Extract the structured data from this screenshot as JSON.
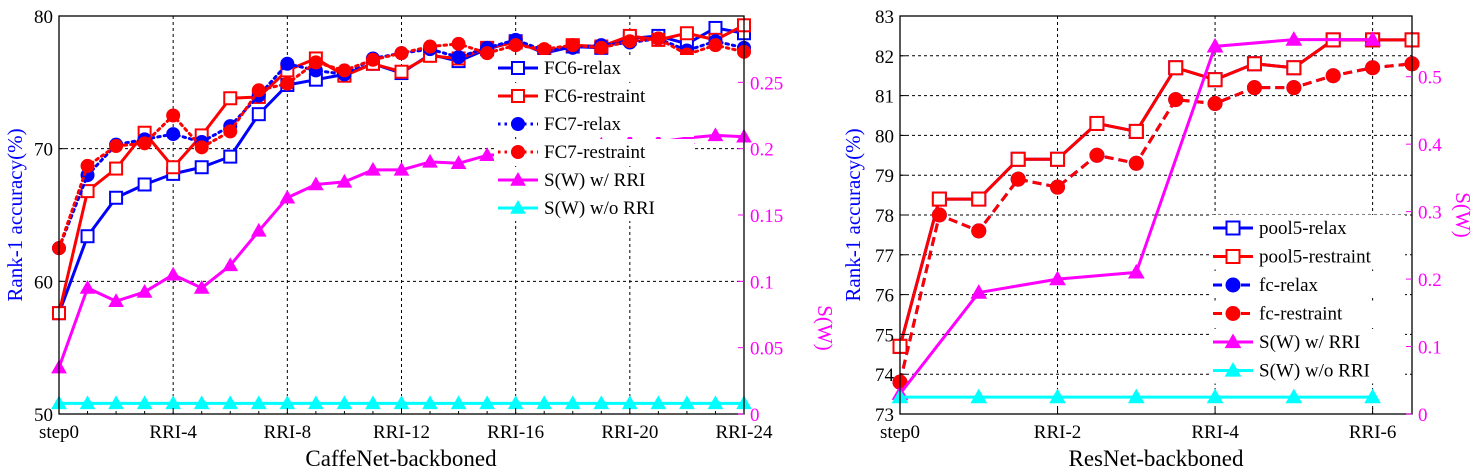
{
  "chart_data": [
    {
      "type": "line",
      "xlabel": "CaffeNet-backboned",
      "ylabel": "Rank-1 accuracy(%)",
      "y2label": "S(W)",
      "x_tick_labels": [
        "step0",
        "RRI-4",
        "RRI-8",
        "RRI-12",
        "RRI-16",
        "RRI-20",
        "RRI-24"
      ],
      "x_ticks": [
        0,
        4,
        8,
        12,
        16,
        20,
        24
      ],
      "xlim": [
        0,
        24
      ],
      "ylim": [
        50,
        80
      ],
      "y_ticks": [
        50,
        60,
        70,
        80
      ],
      "y2lim": [
        0,
        0.3
      ],
      "y2_ticks": [
        0,
        0.05,
        0.1,
        0.15,
        0.2,
        0.25
      ],
      "y2_tick_labels": [
        "0",
        "0.05",
        "0.1",
        "0.15",
        "0.2",
        "0.25"
      ],
      "grid": true,
      "legend_position": "right",
      "series": [
        {
          "name": "FC6-relax",
          "axis": "left",
          "color": "#0000ff",
          "dash": "solid",
          "marker": "square-open",
          "x": [
            0,
            1,
            2,
            3,
            4,
            5,
            6,
            7,
            8,
            9,
            10,
            11,
            12,
            13,
            14,
            15,
            16,
            17,
            18,
            19,
            20,
            21,
            22,
            23,
            24
          ],
          "values": [
            57.6,
            63.4,
            66.3,
            67.3,
            68.1,
            68.6,
            69.4,
            72.6,
            74.8,
            75.2,
            75.6,
            76.4,
            75.7,
            77.1,
            76.6,
            77.5,
            78.1,
            77.2,
            77.7,
            77.6,
            78.3,
            78.5,
            77.9,
            79.1,
            78.7
          ]
        },
        {
          "name": "FC6-restraint",
          "axis": "left",
          "color": "#ff0000",
          "dash": "solid",
          "marker": "square-open",
          "x": [
            0,
            1,
            2,
            3,
            4,
            5,
            6,
            7,
            8,
            9,
            10,
            11,
            12,
            13,
            14,
            15,
            16,
            17,
            18,
            19,
            20,
            21,
            22,
            23,
            24
          ],
          "values": [
            57.6,
            66.8,
            68.5,
            71.2,
            68.6,
            71.0,
            73.8,
            73.9,
            75.9,
            76.8,
            75.5,
            76.4,
            75.8,
            77.0,
            76.8,
            77.6,
            78.0,
            77.3,
            77.8,
            77.7,
            78.5,
            78.2,
            78.7,
            78.2,
            79.3
          ]
        },
        {
          "name": "FC7-relax",
          "axis": "left",
          "color": "#0000ff",
          "dash": "dot",
          "marker": "circle",
          "x": [
            0,
            1,
            2,
            3,
            4,
            5,
            6,
            7,
            8,
            9,
            10,
            11,
            12,
            13,
            14,
            15,
            16,
            17,
            18,
            19,
            20,
            21,
            22,
            23,
            24
          ],
          "values": [
            62.5,
            68.0,
            70.3,
            70.7,
            71.1,
            70.5,
            71.7,
            74.0,
            76.4,
            75.9,
            75.6,
            76.8,
            77.2,
            77.5,
            76.9,
            77.6,
            78.2,
            77.4,
            77.6,
            77.8,
            78.0,
            78.3,
            77.4,
            78.1,
            77.6
          ]
        },
        {
          "name": "FC7-restraint",
          "axis": "left",
          "color": "#ff0000",
          "dash": "dot",
          "marker": "circle",
          "x": [
            0,
            1,
            2,
            3,
            4,
            5,
            6,
            7,
            8,
            9,
            10,
            11,
            12,
            13,
            14,
            15,
            16,
            17,
            18,
            19,
            20,
            21,
            22,
            23,
            24
          ],
          "values": [
            62.5,
            68.7,
            70.2,
            70.4,
            72.5,
            70.1,
            71.3,
            74.4,
            74.9,
            76.5,
            75.9,
            76.7,
            77.2,
            77.7,
            77.9,
            77.2,
            77.8,
            77.5,
            77.8,
            77.6,
            78.1,
            78.3,
            77.1,
            77.8,
            77.3
          ]
        },
        {
          "name": "S(W) w/ RRI",
          "axis": "right",
          "color": "#ff00ff",
          "dash": "solid",
          "marker": "triangle",
          "x": [
            0,
            1,
            2,
            3,
            4,
            5,
            6,
            7,
            8,
            9,
            10,
            11,
            12,
            13,
            14,
            15,
            16,
            17,
            18,
            19,
            20,
            21,
            22,
            23,
            24
          ],
          "values": [
            0.035,
            0.095,
            0.085,
            0.092,
            0.105,
            0.095,
            0.112,
            0.138,
            0.163,
            0.173,
            0.175,
            0.184,
            0.184,
            0.19,
            0.189,
            0.195,
            0.196,
            0.196,
            0.2,
            0.203,
            0.205,
            0.205,
            0.208,
            0.21,
            0.209
          ]
        },
        {
          "name": "S(W) w/o RRI",
          "axis": "right",
          "color": "#00ffff",
          "dash": "solid",
          "marker": "triangle",
          "x": [
            0,
            1,
            2,
            3,
            4,
            5,
            6,
            7,
            8,
            9,
            10,
            11,
            12,
            13,
            14,
            15,
            16,
            17,
            18,
            19,
            20,
            21,
            22,
            23,
            24
          ],
          "values": [
            0.008,
            0.008,
            0.008,
            0.008,
            0.008,
            0.008,
            0.008,
            0.008,
            0.008,
            0.008,
            0.008,
            0.008,
            0.008,
            0.008,
            0.008,
            0.008,
            0.008,
            0.008,
            0.008,
            0.008,
            0.008,
            0.008,
            0.008,
            0.008,
            0.008
          ]
        }
      ]
    },
    {
      "type": "line",
      "xlabel": "ResNet-backboned",
      "ylabel": "Rank-1 accuracy(%)",
      "y2label": "S(W)",
      "x_tick_labels": [
        "step0",
        "RRI-2",
        "RRI-4",
        "RRI-6"
      ],
      "x_ticks": [
        0,
        2,
        4,
        6
      ],
      "xlim": [
        0,
        6.5
      ],
      "ylim": [
        73,
        83
      ],
      "y_ticks": [
        73,
        74,
        75,
        76,
        77,
        78,
        79,
        80,
        81,
        82,
        83
      ],
      "y2lim": [
        0,
        0.59
      ],
      "y2_ticks": [
        0,
        0.1,
        0.2,
        0.3,
        0.4,
        0.5
      ],
      "y2_tick_labels": [
        "0",
        "0.1",
        "0.2",
        "0.3",
        "0.4",
        "0.5"
      ],
      "grid": true,
      "legend_position": "bottom-right",
      "series": [
        {
          "name": "pool5-relax",
          "axis": "left",
          "color": "#0000ff",
          "dash": "solid",
          "marker": "square-open",
          "x": [
            0,
            0.5,
            1,
            1.5,
            2,
            2.5,
            3,
            3.5,
            4,
            4.5,
            5,
            5.5,
            6,
            6.5
          ],
          "values": [
            74.7,
            78.4,
            78.4,
            79.4,
            79.4,
            80.3,
            80.1,
            81.7,
            81.4,
            81.8,
            81.7,
            82.4,
            82.4,
            82.4
          ]
        },
        {
          "name": "pool5-restraint",
          "axis": "left",
          "color": "#ff0000",
          "dash": "solid",
          "marker": "square-open",
          "x": [
            0,
            0.5,
            1,
            1.5,
            2,
            2.5,
            3,
            3.5,
            4,
            4.5,
            5,
            5.5,
            6,
            6.5
          ],
          "values": [
            74.7,
            78.4,
            78.4,
            79.4,
            79.4,
            80.3,
            80.1,
            81.7,
            81.4,
            81.8,
            81.7,
            82.4,
            82.4,
            82.4
          ]
        },
        {
          "name": "fc-relax",
          "axis": "left",
          "color": "#0000ff",
          "dash": "dash",
          "marker": "circle",
          "x": [
            0,
            0.5,
            1,
            1.5,
            2,
            2.5,
            3,
            3.5,
            4,
            4.5,
            5,
            5.5,
            6,
            6.5
          ],
          "values": [
            73.8,
            78.0,
            77.6,
            78.9,
            78.7,
            79.5,
            79.3,
            80.9,
            80.8,
            81.2,
            81.2,
            81.5,
            81.7,
            81.8
          ]
        },
        {
          "name": "fc-restraint",
          "axis": "left",
          "color": "#ff0000",
          "dash": "dash",
          "marker": "circle",
          "x": [
            0,
            0.5,
            1,
            1.5,
            2,
            2.5,
            3,
            3.5,
            4,
            4.5,
            5,
            5.5,
            6,
            6.5
          ],
          "values": [
            73.8,
            78.0,
            77.6,
            78.9,
            78.7,
            79.5,
            79.3,
            80.9,
            80.8,
            81.2,
            81.2,
            81.5,
            81.7,
            81.8
          ]
        },
        {
          "name": "S(W) w/ RRI",
          "axis": "right",
          "color": "#ff00ff",
          "dash": "solid",
          "marker": "triangle",
          "x": [
            0,
            1,
            2,
            3,
            4,
            5,
            6
          ],
          "values": [
            0.03,
            0.18,
            0.2,
            0.21,
            0.545,
            0.555,
            0.555
          ]
        },
        {
          "name": "S(W) w/o RRI",
          "axis": "right",
          "color": "#00ffff",
          "dash": "solid",
          "marker": "triangle",
          "x": [
            0,
            1,
            2,
            3,
            4,
            5,
            6
          ],
          "values": [
            0.025,
            0.025,
            0.025,
            0.025,
            0.025,
            0.025,
            0.025
          ]
        }
      ]
    }
  ]
}
